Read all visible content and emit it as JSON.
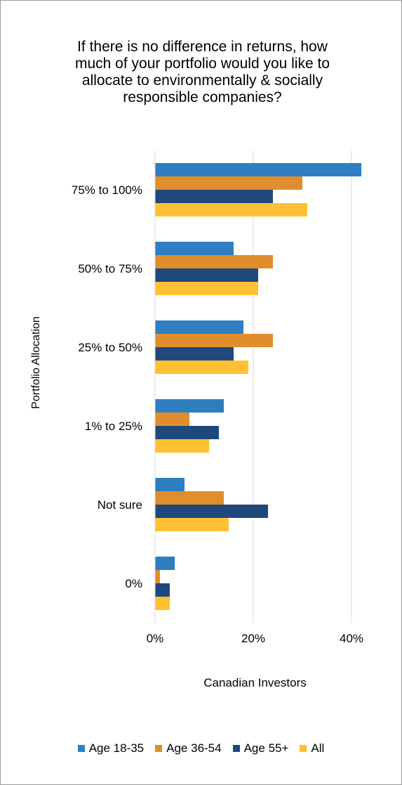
{
  "chart_data": {
    "type": "bar",
    "orientation": "horizontal",
    "title_lines": [
      "If there is no difference in returns, how",
      "much of your portfolio would you like to",
      "allocate to environmentally & socially",
      "responsible companies?"
    ],
    "xlabel": "Canadian Investors",
    "ylabel": "Portfolio Allocation",
    "categories": [
      "75% to 100%",
      "50% to 75%",
      "25% to 50%",
      "1% to 25%",
      "Not sure",
      "0%"
    ],
    "xlim": [
      0,
      43
    ],
    "xticks": [
      0,
      20,
      40
    ],
    "xtick_labels": [
      "0%",
      "20%",
      "40%"
    ],
    "grid": true,
    "legend_position": "bottom",
    "series": [
      {
        "name": "Age 18-35",
        "color": "#2E7EC1",
        "values": [
          42,
          16,
          18,
          14,
          6,
          4
        ]
      },
      {
        "name": "Age 36-54",
        "color": "#E08D2D",
        "values": [
          30,
          24,
          24,
          7,
          14,
          1
        ]
      },
      {
        "name": "Age 55+",
        "color": "#1F497D",
        "values": [
          24,
          21,
          16,
          13,
          23,
          3
        ]
      },
      {
        "name": "All",
        "color": "#FFC133",
        "values": [
          31,
          21,
          19,
          11,
          15,
          3
        ]
      }
    ]
  }
}
